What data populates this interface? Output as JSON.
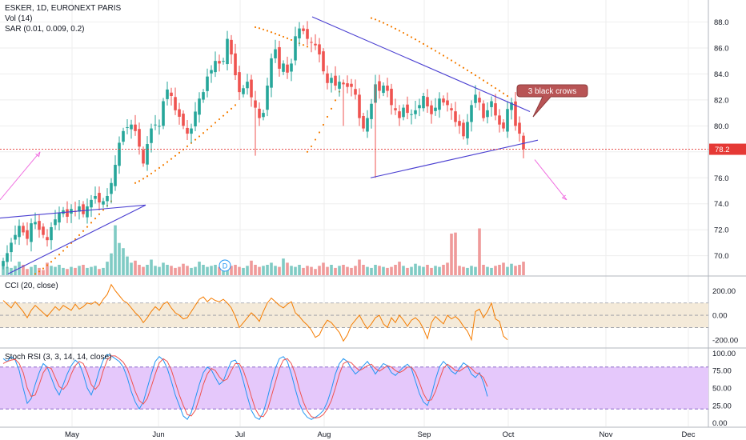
{
  "legend": {
    "main_title": "ESKER, 1D, EURONEXT PARIS",
    "vol": "Vol (14)",
    "sar": "SAR (0.01, 0.009, 0.2)",
    "cci": "CCI (20, close)",
    "stoch": "Stoch RSI (3, 3, 14, 14, close)"
  },
  "colors": {
    "up": "#26a69a",
    "down": "#ef5350",
    "vol_up": "#80cbc4",
    "vol_down": "#ef9a9a",
    "sar": "#f57c00",
    "trendline": "#4a3fd1",
    "arrow": "#f06ee0",
    "cci": "#f57c00",
    "cci_band": "#f4ead9",
    "stoch_k": "#2196f3",
    "stoch_d": "#ef5350",
    "stoch_band": "#e5c8fb",
    "price_line": "#e53935",
    "grid": "#eeeeee"
  },
  "annotation": {
    "text": "3 black crows",
    "fill": "#b85455"
  },
  "dividend_marker": "D",
  "chart_data": [
    {
      "type": "candlestick",
      "title": "ESKER, 1D, EURONEXT PARIS",
      "ylim": [
        68.5,
        89.2
      ],
      "yticks": [
        "88.0",
        "86.0",
        "84.0",
        "82.0",
        "80.0",
        "78.0",
        "76.0",
        "74.0",
        "72.0",
        "70.0"
      ],
      "last_price": "78.2",
      "xticks": [
        "May",
        "Jun",
        "Jul",
        "Aug",
        "Sep",
        "Oct",
        "Nov",
        "Dec"
      ],
      "close_series": [
        69.6,
        70.2,
        71.0,
        71.6,
        72.3,
        71.8,
        71.3,
        72.5,
        72.6,
        72.0,
        71.6,
        71.2,
        72.2,
        72.8,
        73.3,
        73.5,
        73.0,
        73.6,
        73.4,
        73.8,
        73.2,
        73.8,
        74.3,
        74.6,
        74.1,
        74.2,
        74.6,
        75.6,
        77.0,
        78.7,
        79.6,
        79.9,
        80.1,
        79.6,
        78.4,
        77.1,
        78.6,
        79.8,
        80.1,
        80.0,
        81.9,
        82.8,
        82.3,
        81.2,
        80.7,
        80.0,
        79.4,
        79.8,
        81.1,
        82.1,
        82.6,
        83.8,
        84.3,
        85.0,
        84.8,
        85.0,
        86.7,
        85.5,
        83.9,
        82.6,
        82.9,
        83.4,
        82.2,
        81.4,
        80.6,
        81.0,
        83.1,
        85.2,
        85.9,
        84.4,
        84.8,
        84.1,
        84.8,
        86.9,
        87.5,
        87.3,
        86.7,
        86.4,
        86.2,
        85.5,
        84.2,
        83.3,
        83.7,
        83.1,
        83.4,
        83.2,
        83.0,
        83.0,
        82.4,
        80.6,
        79.8,
        80.6,
        81.7,
        83.2,
        82.7,
        83.1,
        82.7,
        81.6,
        81.2,
        80.6,
        81.4,
        81.0,
        80.9,
        81.2,
        81.6,
        82.3,
        81.5,
        80.9,
        81.4,
        82.1,
        81.8,
        81.6,
        81.2,
        80.3,
        80.0,
        79.2,
        80.3,
        81.6,
        82.4,
        81.8,
        80.6,
        81.2,
        81.9,
        80.8,
        80.1,
        79.8,
        81.3,
        81.8,
        80.0,
        79.4,
        78.2
      ],
      "volume_series": [
        1.1,
        0.8,
        0.7,
        0.9,
        1.3,
        1.0,
        0.6,
        0.8,
        1.0,
        0.7,
        0.5,
        1.2,
        0.9,
        0.8,
        1.0,
        0.7,
        0.6,
        0.8,
        0.7,
        0.9,
        1.0,
        0.7,
        0.8,
        0.9,
        0.6,
        0.7,
        1.3,
        2.1,
        4.8,
        3.1,
        2.6,
        1.8,
        1.2,
        1.4,
        1.0,
        0.8,
        1.0,
        1.5,
        0.9,
        0.8,
        1.2,
        1.0,
        0.9,
        0.7,
        0.8,
        1.1,
        0.9,
        0.7,
        0.8,
        1.3,
        1.0,
        0.8,
        0.9,
        1.0,
        0.8,
        0.7,
        1.2,
        0.9,
        1.0,
        0.8,
        0.7,
        0.9,
        1.4,
        1.0,
        0.8,
        0.9,
        1.0,
        1.2,
        0.9,
        0.8,
        1.6,
        1.2,
        0.9,
        0.8,
        1.0,
        0.7,
        0.9,
        0.8,
        0.6,
        0.9,
        1.2,
        0.8,
        1.0,
        0.7,
        0.9,
        1.0,
        0.8,
        0.7,
        0.9,
        1.5,
        1.0,
        0.8,
        0.7,
        1.0,
        0.9,
        0.8,
        0.7,
        0.8,
        1.0,
        1.3,
        0.9,
        0.7,
        0.8,
        1.1,
        0.9,
        0.8,
        1.0,
        0.7,
        0.9,
        0.8,
        1.0,
        1.2,
        4.0,
        4.1,
        0.9,
        0.8,
        0.7,
        0.9,
        0.8,
        4.5,
        1.0,
        0.8,
        0.7,
        0.9,
        1.0,
        1.2,
        0.8,
        1.1,
        0.9,
        1.0,
        1.3
      ]
    },
    {
      "type": "line",
      "title": "CCI (20, close)",
      "ylim": [
        -260,
        300
      ],
      "yticks": [
        "200.00",
        "0.00",
        "-200.00"
      ],
      "band": [
        -100,
        100
      ],
      "values": [
        120,
        90,
        60,
        110,
        70,
        30,
        -20,
        40,
        80,
        50,
        20,
        -10,
        30,
        70,
        40,
        80,
        60,
        40,
        90,
        50,
        70,
        100,
        90,
        110,
        80,
        130,
        170,
        250,
        200,
        160,
        120,
        100,
        60,
        20,
        -10,
        -60,
        -20,
        30,
        70,
        40,
        90,
        110,
        60,
        20,
        0,
        -30,
        -20,
        30,
        80,
        130,
        150,
        110,
        140,
        120,
        110,
        130,
        100,
        60,
        -10,
        -100,
        -60,
        -20,
        20,
        -10,
        -50,
        30,
        100,
        140,
        110,
        80,
        60,
        90,
        110,
        20,
        -10,
        -50,
        -80,
        -120,
        -180,
        -160,
        -90,
        -40,
        -60,
        -100,
        -140,
        -210,
        -160,
        -80,
        -40,
        0,
        -60,
        -110,
        -70,
        -20,
        0,
        -70,
        -100,
        -20,
        -60,
        0,
        -40,
        -90,
        -40,
        -20,
        -50,
        -110,
        -190,
        -60,
        -10,
        -40,
        -70,
        0,
        -30,
        -10,
        -40,
        -90,
        -130,
        -200,
        30,
        50,
        -20,
        30,
        100,
        -30,
        -50,
        -170,
        -200
      ]
    },
    {
      "type": "line",
      "title": "Stoch RSI (3, 3, 14, 14, close)",
      "ylim": [
        -5,
        105
      ],
      "yticks": [
        "100.00",
        "75.00",
        "50.00",
        "25.00",
        "0.00"
      ],
      "band": [
        20,
        80
      ],
      "series": [
        {
          "values": [
            92,
            88,
            95,
            90,
            75,
            50,
            28,
            35,
            55,
            72,
            85,
            80,
            65,
            50,
            40,
            55,
            70,
            82,
            90,
            85,
            70,
            50,
            40,
            55,
            75,
            90,
            98,
            96,
            92,
            88,
            80,
            65,
            45,
            30,
            20,
            30,
            50,
            70,
            88,
            95,
            90,
            78,
            60,
            40,
            25,
            10,
            5,
            15,
            35,
            55,
            72,
            80,
            76,
            65,
            55,
            60,
            75,
            88,
            90,
            80,
            60,
            38,
            18,
            8,
            5,
            15,
            35,
            58,
            78,
            92,
            95,
            88,
            70,
            48,
            28,
            15,
            8,
            5,
            8,
            12,
            18,
            30,
            48,
            70,
            85,
            92,
            88,
            78,
            70,
            75,
            82,
            88,
            80,
            70,
            78,
            85,
            82,
            72,
            68,
            74,
            80,
            84,
            78,
            60,
            42,
            30,
            25,
            40,
            62,
            80,
            88,
            82,
            74,
            70,
            78,
            86,
            82,
            70,
            65,
            72,
            58,
            38
          ]
        },
        {
          "values": [
            85,
            88,
            90,
            91,
            85,
            72,
            50,
            38,
            40,
            55,
            72,
            80,
            78,
            65,
            52,
            48,
            55,
            70,
            82,
            88,
            85,
            72,
            55,
            48,
            55,
            75,
            90,
            96,
            96,
            92,
            87,
            78,
            62,
            45,
            32,
            27,
            35,
            52,
            70,
            86,
            92,
            88,
            76,
            58,
            40,
            25,
            12,
            10,
            18,
            35,
            55,
            70,
            78,
            75,
            66,
            60,
            63,
            75,
            85,
            85,
            75,
            58,
            38,
            20,
            10,
            9,
            18,
            38,
            58,
            78,
            90,
            92,
            85,
            70,
            48,
            30,
            17,
            9,
            7,
            8,
            12,
            20,
            32,
            50,
            70,
            85,
            88,
            86,
            80,
            75,
            78,
            82,
            84,
            78,
            74,
            78,
            82,
            80,
            75,
            72,
            75,
            80,
            80,
            72,
            58,
            42,
            32,
            33,
            45,
            62,
            78,
            84,
            80,
            75,
            74,
            78,
            82,
            78,
            72,
            70,
            65,
            52
          ]
        }
      ]
    }
  ]
}
